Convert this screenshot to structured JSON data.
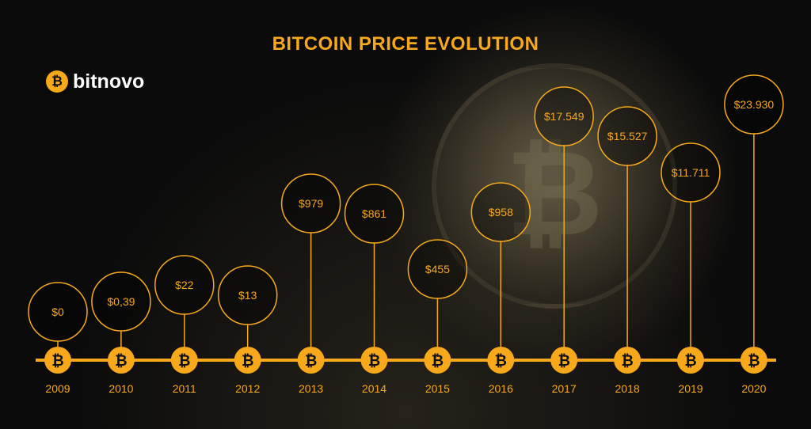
{
  "brand": {
    "name": "bitnovo",
    "icon": "bitcoin-icon"
  },
  "colors": {
    "accent": "#f7a81b",
    "background": "#0b0b0b",
    "logo_text": "#ffffff"
  },
  "chart_data": {
    "type": "timeline",
    "title": "BITCOIN PRICE EVOLUTION",
    "categories": [
      "2009",
      "2010",
      "2011",
      "2012",
      "2013",
      "2014",
      "2015",
      "2016",
      "2017",
      "2018",
      "2019",
      "2020"
    ],
    "values": [
      0,
      0.39,
      22,
      13,
      979,
      861,
      455,
      958,
      17549,
      15527,
      11711,
      23930
    ],
    "labels": [
      "$0",
      "$0,39",
      "$22",
      "$13",
      "$979",
      "$861",
      "$455",
      "$958",
      "$17.549",
      "$15.527",
      "$11.711",
      "$23.930"
    ],
    "marker_icon": "bitcoin-icon"
  }
}
